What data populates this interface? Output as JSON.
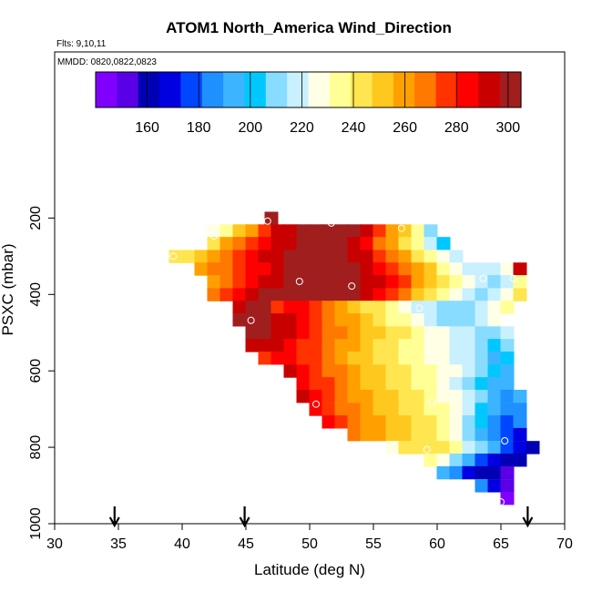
{
  "chart_data": {
    "type": "heatmap",
    "title": "ATOM1 North_America Wind_Direction",
    "annotations": [
      "Flts: 9,10,11",
      "MMDD: 0820,0822,0823"
    ],
    "xlabel": "Latitude (deg N)",
    "ylabel": "PSXC (mbar)",
    "xlim": [
      30,
      70
    ],
    "ylim": [
      1000,
      50
    ],
    "x_ticks": [
      "30",
      "35",
      "40",
      "45",
      "50",
      "55",
      "60",
      "65",
      "70"
    ],
    "y_ticks": [
      "200",
      "400",
      "600",
      "800",
      "1000"
    ],
    "colorbar": {
      "range": [
        140,
        305
      ],
      "ticks": [
        "160",
        "180",
        "200",
        "220",
        "240",
        "260",
        "280",
        "300"
      ],
      "colors": [
        "#8000ff",
        "#5a00e6",
        "#0000b4",
        "#0000e0",
        "#0046ff",
        "#1e90ff",
        "#3cb4ff",
        "#00c8ff",
        "#87dcff",
        "#c8f0ff",
        "#ffffe6",
        "#ffff96",
        "#ffe650",
        "#ffc81e",
        "#ffa000",
        "#ff7800",
        "#ff3200",
        "#ff0000",
        "#c80000",
        "#a01e1e"
      ]
    },
    "cell_size": {
      "latitude_deg": 1.0,
      "pressure_mbar": 33
    },
    "rows": [
      {
        "p": 200,
        "lat0": 46.5,
        "values": [
          301
        ]
      },
      {
        "p": 233,
        "lat0": 42,
        "values": [
          226,
          236,
          248,
          262,
          274,
          290,
          294,
          298,
          300,
          300,
          300,
          300,
          294,
          280,
          262,
          248,
          232,
          210
        ]
      },
      {
        "p": 266,
        "lat0": 42,
        "values": [
          240,
          258,
          266,
          276,
          286,
          292,
          296,
          300,
          302,
          302,
          300,
          294,
          286,
          270,
          258,
          246,
          234,
          222,
          200
        ]
      },
      {
        "p": 300,
        "lat0": 39,
        "values": [
          240,
          246,
          252,
          262,
          268,
          276,
          282,
          290,
          294,
          298,
          300,
          302,
          302,
          300,
          296,
          290,
          280,
          268,
          256,
          246,
          236,
          226,
          216
        ]
      },
      {
        "p": 333,
        "lat0": 41,
        "values": [
          258,
          264,
          270,
          276,
          282,
          288,
          294,
          298,
          302,
          302,
          302,
          302,
          300,
          296,
          288,
          278,
          268,
          258,
          248,
          238,
          230,
          222,
          216,
          222,
          228,
          290
        ]
      },
      {
        "p": 366,
        "lat0": 42,
        "values": [
          262,
          268,
          276,
          284,
          290,
          296,
          300,
          302,
          302,
          302,
          302,
          300,
          296,
          290,
          282,
          272,
          262,
          252,
          242,
          234,
          226,
          218,
          214,
          222,
          236
        ]
      },
      {
        "p": 400,
        "lat0": 42,
        "values": [
          268,
          276,
          284,
          292,
          298,
          302,
          302,
          302,
          302,
          302,
          302,
          298,
          292,
          284,
          274,
          264,
          254,
          244,
          234,
          226,
          218,
          214,
          218,
          226,
          240
        ]
      },
      {
        "p": 433,
        "lat0": 44,
        "values": [
          290,
          298,
          300,
          280,
          288,
          284,
          274,
          266,
          258,
          252,
          246,
          240,
          234,
          228,
          222,
          216,
          212,
          212,
          214,
          218,
          224,
          232
        ]
      },
      {
        "p": 466,
        "lat0": 44,
        "values": [
          298,
          302,
          300,
          296,
          290,
          284,
          278,
          270,
          262,
          256,
          250,
          244,
          238,
          232,
          226,
          220,
          214,
          212,
          214,
          220,
          228
        ]
      },
      {
        "p": 500,
        "lat0": 45,
        "values": [
          302,
          300,
          296,
          290,
          284,
          278,
          270,
          264,
          258,
          252,
          248,
          244,
          240,
          236,
          230,
          226,
          220,
          216,
          212,
          214,
          222
        ]
      },
      {
        "p": 533,
        "lat0": 45,
        "values": [
          290,
          296,
          292,
          286,
          280,
          274,
          268,
          262,
          256,
          250,
          246,
          242,
          238,
          234,
          230,
          226,
          222,
          216,
          210,
          200,
          214
        ]
      },
      {
        "p": 566,
        "lat0": 46,
        "values": [
          280,
          286,
          282,
          278,
          272,
          266,
          260,
          254,
          248,
          244,
          240,
          236,
          232,
          228,
          226,
          222,
          218,
          210,
          194,
          202
        ]
      },
      {
        "p": 600,
        "lat0": 48,
        "values": [
          290,
          284,
          276,
          270,
          264,
          258,
          252,
          248,
          244,
          240,
          236,
          232,
          228,
          224,
          218,
          212,
          198,
          196
        ]
      },
      {
        "p": 633,
        "lat0": 49,
        "values": [
          286,
          280,
          272,
          266,
          260,
          254,
          250,
          246,
          242,
          238,
          234,
          228,
          222,
          214,
          204,
          192,
          196
        ]
      },
      {
        "p": 666,
        "lat0": 49,
        "values": [
          290,
          284,
          276,
          268,
          262,
          256,
          252,
          248,
          244,
          240,
          236,
          230,
          224,
          216,
          206,
          196,
          188,
          192
        ]
      },
      {
        "p": 700,
        "lat0": 50,
        "values": [
          286,
          278,
          270,
          264,
          258,
          254,
          250,
          246,
          242,
          238,
          234,
          226,
          216,
          202,
          190,
          184,
          186
        ]
      },
      {
        "p": 733,
        "lat0": 51,
        "values": [
          282,
          274,
          268,
          262,
          258,
          254,
          250,
          246,
          242,
          236,
          226,
          214,
          200,
          188,
          180,
          182
        ]
      },
      {
        "p": 766,
        "lat0": 53,
        "values": [
          264,
          260,
          256,
          252,
          248,
          244,
          240,
          234,
          224,
          210,
          196,
          184,
          174,
          168
        ]
      },
      {
        "p": 800,
        "lat0": 56,
        "values": [
          226,
          240,
          246,
          244,
          240,
          232,
          222,
          206,
          190,
          178,
          170,
          162
        ]
      },
      {
        "p": 833,
        "lat0": 59,
        "values": [
          238,
          228,
          212,
          194,
          180,
          170,
          162,
          158
        ]
      },
      {
        "p": 866,
        "lat0": 60,
        "values": [
          190,
          182,
          172,
          164,
          158,
          152
        ]
      },
      {
        "p": 900,
        "lat0": 63,
        "values": [
          182,
          166,
          150
        ]
      },
      {
        "p": 933,
        "lat0": 65,
        "values": [
          146
        ]
      }
    ],
    "sample_points": [
      {
        "lat": 46.7,
        "p": 208
      },
      {
        "lat": 51.7,
        "p": 213
      },
      {
        "lat": 57.2,
        "p": 227
      },
      {
        "lat": 42.5,
        "p": 247
      },
      {
        "lat": 39.3,
        "p": 300
      },
      {
        "lat": 49.2,
        "p": 366
      },
      {
        "lat": 53.3,
        "p": 378
      },
      {
        "lat": 63.6,
        "p": 358
      },
      {
        "lat": 66.0,
        "p": 358
      },
      {
        "lat": 58.6,
        "p": 436
      },
      {
        "lat": 64.5,
        "p": 450
      },
      {
        "lat": 45.4,
        "p": 468
      },
      {
        "lat": 50.5,
        "p": 687
      },
      {
        "lat": 59.6,
        "p": 683
      },
      {
        "lat": 65.3,
        "p": 783
      },
      {
        "lat": 59.2,
        "p": 806
      },
      {
        "lat": 65.0,
        "p": 943
      }
    ],
    "arrow_latitudes": [
      34.7,
      44.9,
      67.1
    ]
  }
}
